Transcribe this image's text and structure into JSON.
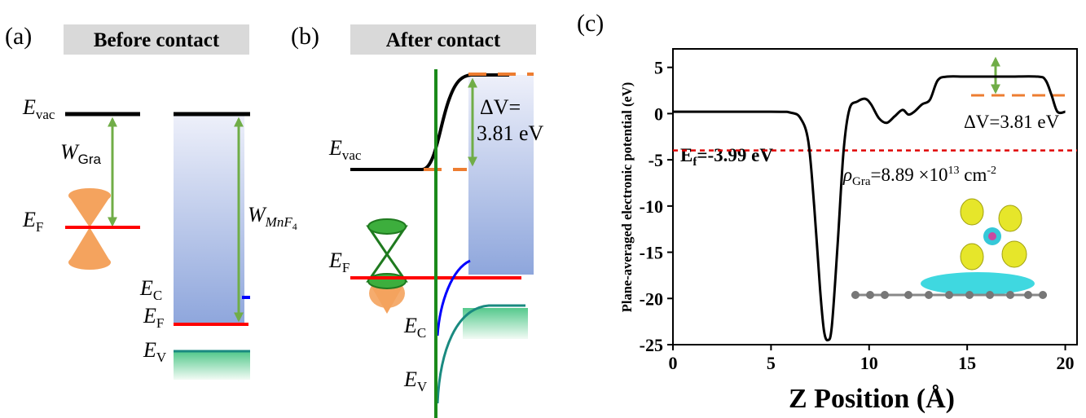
{
  "panel_a": {
    "label": "(a)",
    "header": "Before contact",
    "e_vac": {
      "symbol": "E",
      "sub": "vac"
    },
    "w_gra": {
      "symbol": "W",
      "sub": "Gra"
    },
    "e_f_gra": {
      "symbol": "E",
      "sub": "F"
    },
    "w_mnf4": {
      "symbol": "W",
      "sub": "MnF",
      "subsub": "4"
    },
    "e_c": {
      "symbol": "E",
      "sub": "C"
    },
    "e_f_mnf4": {
      "symbol": "E",
      "sub": "F"
    },
    "e_v": {
      "symbol": "E",
      "sub": "V"
    }
  },
  "panel_b": {
    "label": "(b)",
    "header": "After contact",
    "e_vac": {
      "symbol": "E",
      "sub": "vac"
    },
    "delta_v": {
      "line1": "ΔV=",
      "line2": "3.81 eV"
    },
    "e_f": {
      "symbol": "E",
      "sub": "F"
    },
    "e_c": {
      "symbol": "E",
      "sub": "C"
    },
    "e_v": {
      "symbol": "E",
      "sub": "V"
    }
  },
  "chart_data": {
    "type": "line",
    "panel_label": "(c)",
    "x_label": "Z Position (Å)",
    "y_label": "Plane-averaged electronic potential (eV)",
    "xlim": [
      0,
      20.6
    ],
    "ylim": [
      -25,
      7
    ],
    "xticks": [
      0,
      5,
      10,
      15,
      20
    ],
    "yticks": [
      -25,
      -20,
      -15,
      -10,
      -5,
      0,
      5
    ],
    "series": [
      {
        "color": "#000000",
        "x": [
          0,
          5,
          6,
          6.5,
          6.9,
          7.2,
          7.5,
          7.7,
          7.9,
          8.1,
          8.4,
          8.7,
          9.0,
          9.4,
          9.8,
          10.1,
          10.5,
          10.9,
          11.3,
          11.7,
          12.0,
          12.3,
          12.7,
          13.1,
          13.5,
          14.0,
          15,
          17,
          18.6,
          19.0,
          19.3,
          19.6,
          20
        ],
        "values": [
          0.2,
          0.2,
          0.1,
          -0.5,
          -3,
          -10,
          -19,
          -23.5,
          -24.5,
          -23,
          -14,
          -4,
          0.5,
          1.3,
          1.6,
          1.0,
          -0.5,
          -1.0,
          -0.3,
          0.4,
          -0.1,
          0.2,
          1.0,
          1.5,
          3.6,
          4.0,
          4.0,
          4.0,
          4.0,
          3.6,
          2,
          0.2,
          0.2
        ]
      }
    ],
    "fermi_level": -3.99,
    "fermi_color": "#e00000",
    "fermi_label": {
      "symbol": "E",
      "sub": "f",
      "text": "=-3.99 eV"
    },
    "delta_v_label": "ΔV=3.81 eV",
    "rho_label": {
      "symbol": "ρ",
      "sub": "Gra",
      "text": "=8.89 ×10",
      "exp": "13",
      "unit": " cm",
      "unit_exp": "-2"
    }
  }
}
